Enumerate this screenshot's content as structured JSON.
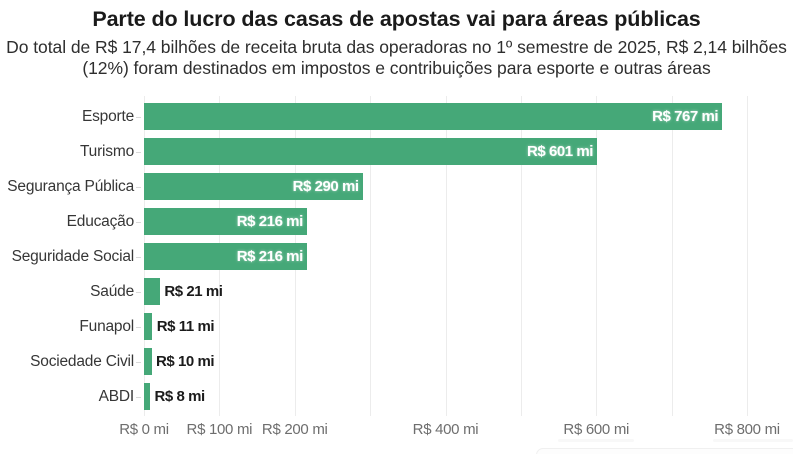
{
  "header": {
    "title": "Parte do lucro das casas de apostas vai para áreas públicas",
    "subtitle_line1": "Do total de R$ 17,4 bilhões de receita bruta das operadoras no 1º semestre de 2025, R$ 2,14 bilhões",
    "subtitle_line2": "(12%) foram destinados em impostos e contribuições para esporte e outras áreas"
  },
  "chart_data": {
    "type": "bar",
    "orientation": "horizontal",
    "title": "Parte do lucro das casas de apostas vai para áreas públicas",
    "categories": [
      "Esporte",
      "Turismo",
      "Segurança Pública",
      "Educação",
      "Seguridade Social",
      "Saúde",
      "Funapol",
      "Sociedade Civil",
      "ABDI"
    ],
    "values": [
      767,
      601,
      290,
      216,
      216,
      21,
      11,
      10,
      8
    ],
    "value_labels": [
      "R$ 767 mi",
      "R$ 601 mi",
      "R$ 290 mi",
      "R$ 216 mi",
      "R$ 216 mi",
      "R$ 21 mi",
      "R$ 11 mi",
      "R$ 10 mi",
      "R$ 8 mi"
    ],
    "unit": "R$ mi",
    "xlim": [
      0,
      800
    ],
    "x_tick_labels": [
      {
        "value": 0,
        "label": "R$ 0 mi"
      },
      {
        "value": 100,
        "label": "R$ 100 mi"
      },
      {
        "value": 200,
        "label": "R$ 200 mi"
      },
      {
        "value": 400,
        "label": "R$ 400 mi"
      },
      {
        "value": 600,
        "label": "R$ 600 mi"
      },
      {
        "value": 800,
        "label": "R$ 800 mi"
      }
    ],
    "gridline_step": 100,
    "grid": true,
    "legend": "none"
  },
  "style": {
    "bar_color": "#45a878",
    "gridline_color": "#ececec",
    "inside_label_color": "#ffffff",
    "outside_label_color": "#1b1b1b",
    "axis_label_color": "#6e6e6e"
  }
}
